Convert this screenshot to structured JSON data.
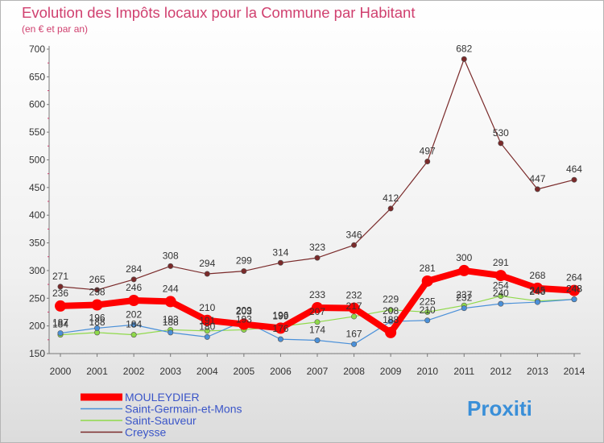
{
  "header": {
    "title": "Evolution des Impôts locaux pour la Commune par Habitant",
    "subtitle": "(en € et par an)"
  },
  "logo": {
    "text": "Proxiti"
  },
  "chart_data": {
    "type": "line",
    "title": "Evolution des Impôts locaux pour la Commune par Habitant",
    "subtitle": "(en € et par an)",
    "x": [
      2000,
      2001,
      2002,
      2003,
      2004,
      2005,
      2006,
      2007,
      2008,
      2009,
      2010,
      2011,
      2012,
      2013,
      2014
    ],
    "ylim": [
      150,
      700
    ],
    "yticks": [
      150,
      200,
      250,
      300,
      350,
      400,
      450,
      500,
      550,
      600,
      650,
      700
    ],
    "grid": false,
    "legend_position": "bottom-left",
    "series": [
      {
        "name": "MOULEYDIER",
        "color": "#ff0000",
        "values": [
          236,
          238,
          246,
          244,
          210,
          203,
          196,
          233,
          232,
          188,
          281,
          300,
          291,
          268,
          264
        ]
      },
      {
        "name": "Saint-Germain-et-Mons",
        "color": "#4a90d9",
        "values": [
          187,
          196,
          202,
          188,
          180,
          209,
          176,
          174,
          167,
          208,
          210,
          232,
          240,
          243,
          248
        ]
      },
      {
        "name": "Saint-Sauveur",
        "color": "#8fd94a",
        "values": [
          184,
          188,
          184,
          193,
          191,
          193,
          199,
          207,
          217,
          229,
          225,
          237,
          254,
          245,
          248
        ]
      },
      {
        "name": "Creysse",
        "color": "#7a2a2a",
        "values": [
          271,
          265,
          284,
          308,
          294,
          299,
          314,
          323,
          346,
          412,
          497,
          682,
          530,
          447,
          464
        ]
      }
    ]
  }
}
